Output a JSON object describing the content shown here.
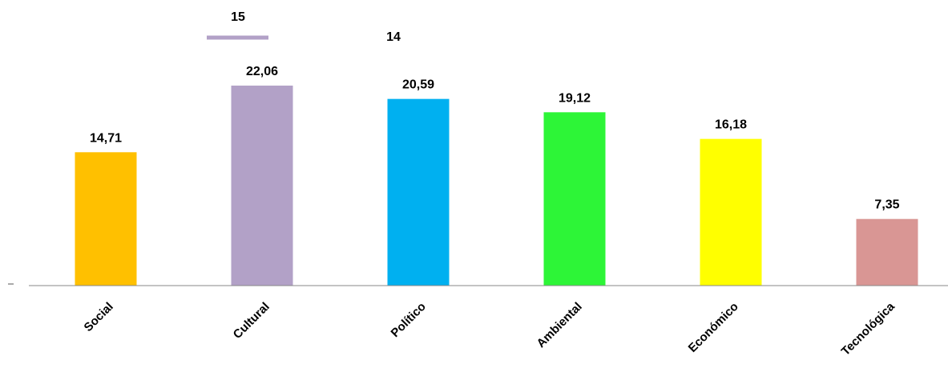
{
  "chart_data": {
    "type": "bar",
    "categories": [
      "Social",
      "Cultural",
      "Político",
      "Ambiental",
      "Económico",
      "Tecnológica"
    ],
    "values": [
      14.71,
      22.06,
      20.59,
      19.12,
      16.18,
      7.35
    ],
    "value_labels": [
      "14,71",
      "22,06",
      "20,59",
      "19,12",
      "16,18",
      "7,35"
    ],
    "colors": [
      "#FFC000",
      "#B2A1C7",
      "#00B0F0",
      "#2DF537",
      "#FFFF00",
      "#D99694"
    ],
    "ylim": [
      0,
      22.06
    ],
    "grid": false,
    "annotations": [
      {
        "text": "15",
        "near": "Cultural",
        "color": "#B2A1C7",
        "with_line": true
      },
      {
        "text": "14",
        "near": "Político"
      }
    ]
  }
}
